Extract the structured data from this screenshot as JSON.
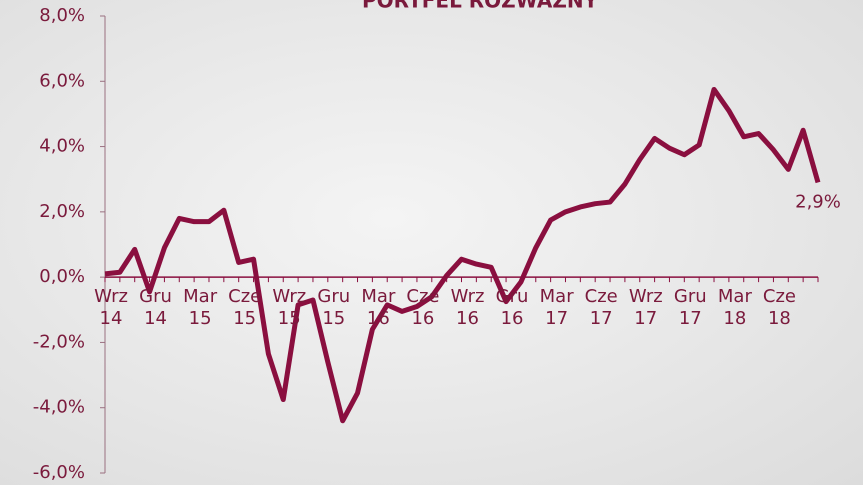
{
  "chart_data": {
    "type": "line",
    "title": "PORTFEL ROZWAŻNY",
    "categories": [
      "Wrz 14",
      null,
      null,
      "Gru 14",
      null,
      null,
      "Mar 15",
      null,
      null,
      "Cze 15",
      null,
      null,
      "Wrz 15",
      null,
      null,
      "Gru 15",
      null,
      null,
      "Mar 16",
      null,
      null,
      "Cze 16",
      null,
      null,
      "Wrz 16",
      null,
      null,
      "Gru 16",
      null,
      null,
      "Mar 17",
      null,
      null,
      "Cze 17",
      null,
      null,
      "Wrz 17",
      null,
      null,
      "Gru 17",
      null,
      null,
      "Mar 18",
      null,
      null,
      "Cze 18",
      null,
      null,
      null
    ],
    "values": [
      0.1,
      0.15,
      0.85,
      -0.45,
      0.9,
      1.8,
      1.7,
      1.7,
      2.05,
      0.45,
      0.55,
      -2.35,
      -3.75,
      -0.85,
      -0.7,
      -2.6,
      -4.4,
      -3.55,
      -1.6,
      -0.85,
      -1.05,
      -0.9,
      -0.6,
      0.05,
      0.55,
      0.4,
      0.3,
      -0.75,
      -0.15,
      0.9,
      1.75,
      2.0,
      2.15,
      2.25,
      2.3,
      2.85,
      3.6,
      4.25,
      3.95,
      3.75,
      4.05,
      5.75,
      5.1,
      4.3,
      4.4,
      3.9,
      3.3,
      4.5,
      2.9
    ],
    "value_labels": [
      null,
      null,
      null,
      null,
      null,
      null,
      null,
      null,
      null,
      null,
      null,
      null,
      null,
      null,
      null,
      null,
      null,
      null,
      null,
      null,
      null,
      null,
      null,
      null,
      null,
      null,
      null,
      null,
      null,
      null,
      null,
      null,
      null,
      null,
      null,
      null,
      null,
      null,
      null,
      null,
      null,
      null,
      null,
      null,
      null,
      null,
      null,
      null,
      "2,9%"
    ],
    "color": "#8a0f3f",
    "ylim": [
      -6,
      8
    ],
    "yticks": [
      {
        "value": -6,
        "label": "-6,0%"
      },
      {
        "value": -4,
        "label": "-4,0%"
      },
      {
        "value": -2,
        "label": "-2,0%"
      },
      {
        "value": 0,
        "label": "0,0%"
      },
      {
        "value": 2,
        "label": "2,0%"
      },
      {
        "value": 4,
        "label": "4,0%"
      },
      {
        "value": 6,
        "label": "6,0%"
      },
      {
        "value": 8,
        "label": "8,0%"
      }
    ]
  }
}
